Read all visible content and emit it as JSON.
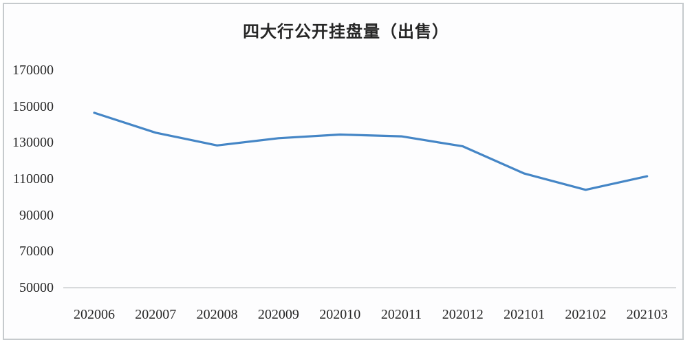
{
  "chart": {
    "frame_border_color": "#c6cacd",
    "background": "#fdfdfe"
  },
  "chart_data": {
    "type": "line",
    "title": "四大行公开挂盘量（出售）",
    "categories": [
      "202006",
      "202007",
      "202008",
      "202009",
      "202010",
      "202011",
      "202012",
      "202101",
      "202102",
      "202103"
    ],
    "values": [
      146500,
      135500,
      128500,
      132500,
      134500,
      133500,
      128000,
      113000,
      104000,
      111500
    ],
    "y_ticks": [
      170000,
      150000,
      130000,
      110000,
      90000,
      70000,
      50000
    ],
    "ylim": [
      50000,
      170000
    ],
    "xlabel": "",
    "ylabel": "",
    "grid": false,
    "legend": false,
    "line_color": "#4586c6",
    "axis_color": "#b3b6b9",
    "text_color": "#262626"
  }
}
